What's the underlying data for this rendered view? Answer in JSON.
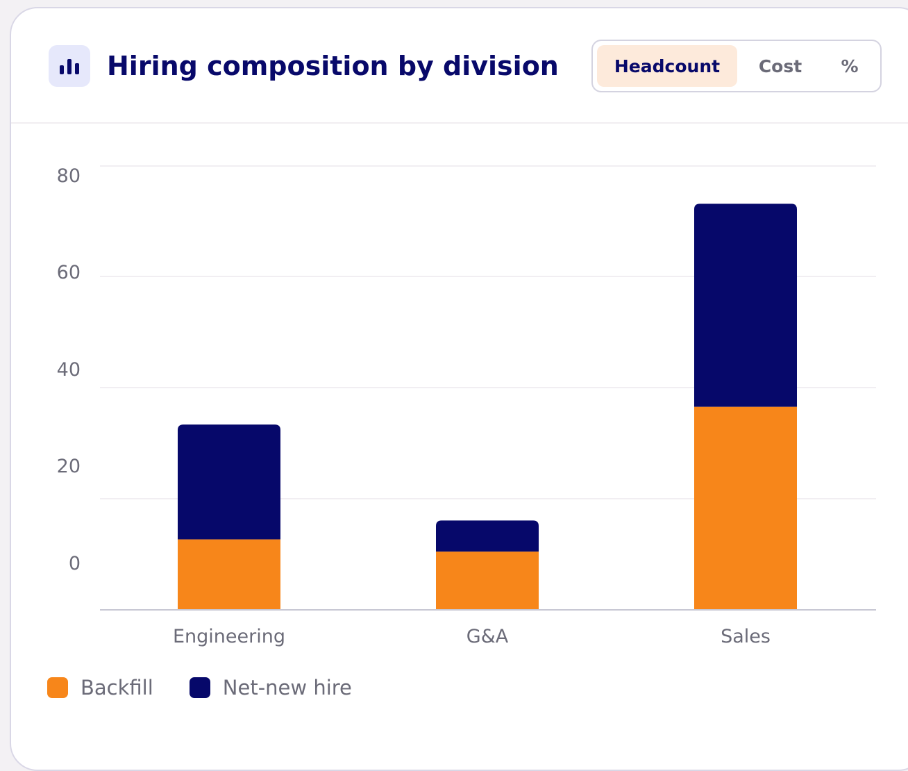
{
  "header": {
    "title": "Hiring composition by division",
    "toggles": [
      {
        "label": "Headcount",
        "active": true
      },
      {
        "label": "Cost",
        "active": false
      },
      {
        "label": "%",
        "active": false
      }
    ]
  },
  "colors": {
    "backfill": "#f7861a",
    "net_new": "#06086a",
    "title": "#08096a"
  },
  "chart_data": {
    "type": "bar",
    "stacked": true,
    "categories": [
      "Engineering",
      "G&A",
      "Sales"
    ],
    "series": [
      {
        "name": "Backfill",
        "values": [
          12.7,
          10.5,
          36.6
        ]
      },
      {
        "name": "Net-new hire",
        "values": [
          20.7,
          5.6,
          36.6
        ]
      }
    ],
    "y_ticks": [
      "80",
      "60",
      "40",
      "20",
      "0"
    ],
    "grid": true,
    "legend_position": "bottom-left"
  },
  "legend": [
    {
      "label": "Backfill",
      "color": "#f7861a"
    },
    {
      "label": "Net-new hire",
      "color": "#06086a"
    }
  ]
}
